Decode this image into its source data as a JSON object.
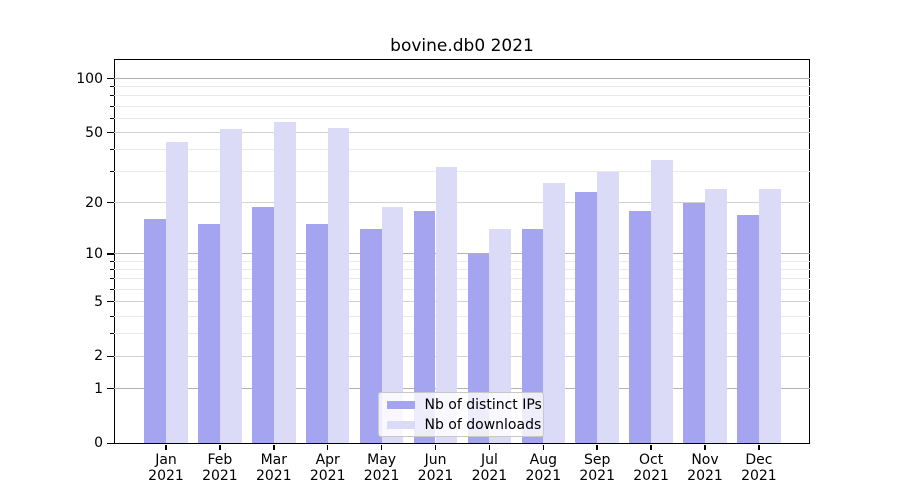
{
  "chart_data": {
    "type": "bar",
    "title": "bovine.db0 2021",
    "categories": [
      "Jan 2021",
      "Feb 2021",
      "Mar 2021",
      "Apr 2021",
      "May 2021",
      "Jun 2021",
      "Jul 2021",
      "Aug 2021",
      "Sep 2021",
      "Oct 2021",
      "Nov 2021",
      "Dec 2021"
    ],
    "series": [
      {
        "name": "Nb of distinct IPs",
        "color": "#a4a4f0",
        "values": [
          16,
          15,
          19,
          15,
          14,
          18,
          10,
          14,
          23,
          18,
          20,
          17
        ]
      },
      {
        "name": "Nb of downloads",
        "color": "#dbdbf8",
        "values": [
          44,
          52,
          57,
          53,
          19,
          32,
          14,
          26,
          30,
          35,
          24,
          24
        ]
      }
    ],
    "yscale": "log1p",
    "ylim": [
      0,
      128
    ],
    "y_major_ticks": [
      100,
      50,
      20,
      10,
      5,
      2,
      1,
      0
    ],
    "y_minor_gridlines": [
      90,
      80,
      70,
      60,
      40,
      30,
      9,
      8,
      7,
      6,
      4,
      3
    ],
    "grid": true,
    "legend_position": "lower-center",
    "xlabel": "",
    "ylabel": ""
  },
  "colors": {
    "background": "#ffffff",
    "frame": "#000000",
    "grid_decade": "#b2b2b2",
    "grid_major": "#d2d2d2",
    "grid_minor": "#eaeaea",
    "text": "#000000",
    "legend_border": "#c8c8c8"
  },
  "legend": {
    "items": [
      {
        "label": "Nb of distinct IPs"
      },
      {
        "label": "Nb of downloads"
      }
    ]
  }
}
